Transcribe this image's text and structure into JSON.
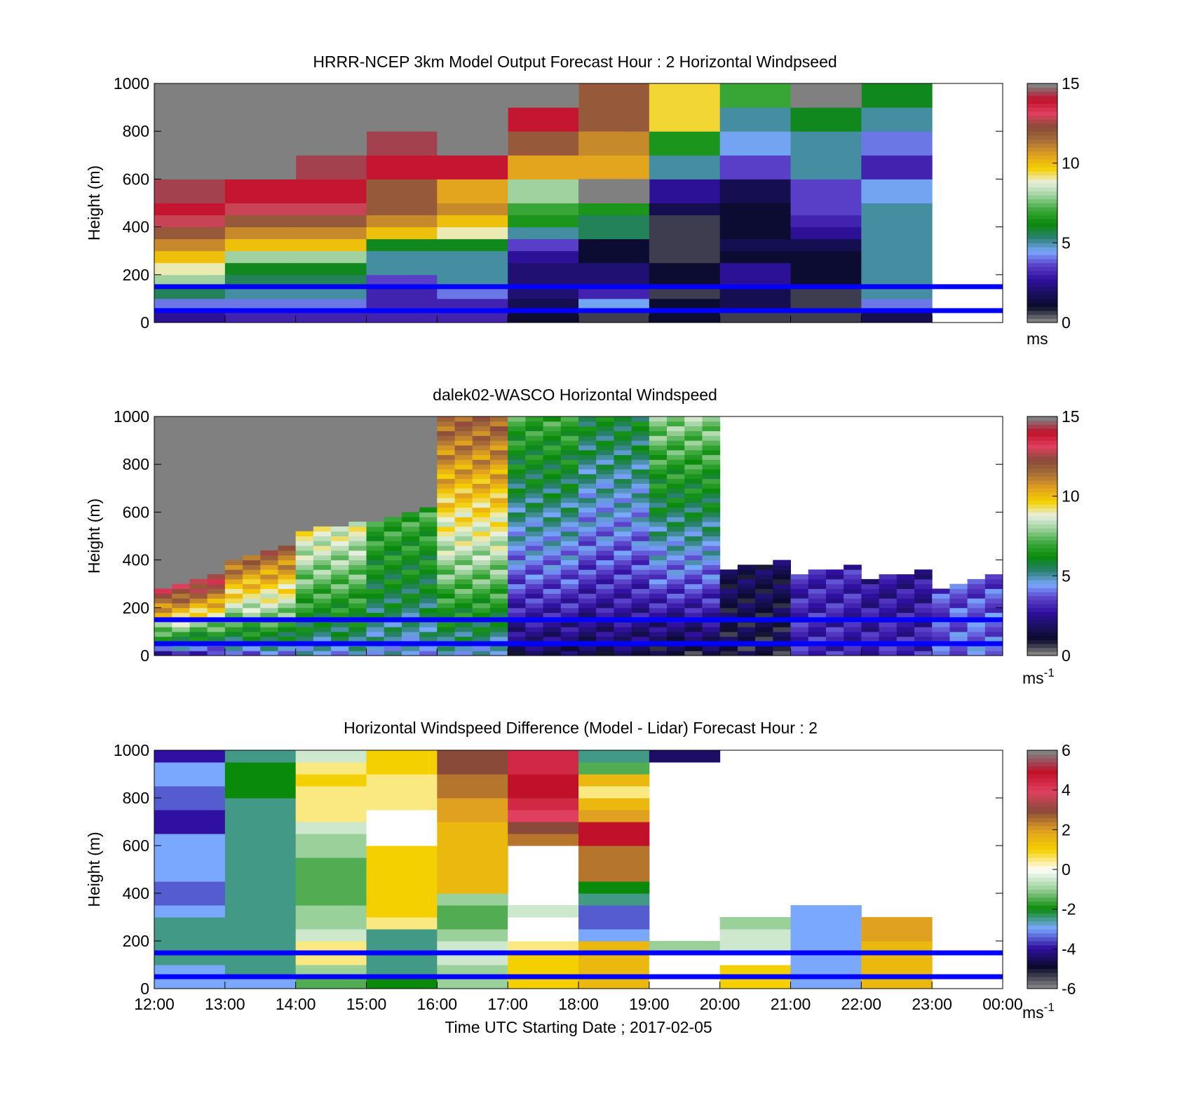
{
  "colormaps": {
    "speed": [
      "#808080",
      "#0a0a2a",
      "#1a1060",
      "#3010a0",
      "#5a40c8",
      "#7aa8ff",
      "#2a8070",
      "#0a8a0a",
      "#3aa83a",
      "#9ad09a",
      "#e8f0e0",
      "#f5d000",
      "#e0a020",
      "#a87038",
      "#8a4a3a",
      "#e04060",
      "#c0102a",
      "#808080"
    ],
    "diff": [
      "#808080",
      "#0a0a2a",
      "#3010a0",
      "#7aa8ff",
      "#0a8a0a",
      "#9ad09a",
      "#ffffff",
      "#f5d000",
      "#e0a020",
      "#8a4a3a",
      "#e04060",
      "#c0102a",
      "#808080"
    ]
  },
  "blue_line_color": "#0000ff",
  "x_ticks": [
    "12:00",
    "13:00",
    "14:00",
    "15:00",
    "16:00",
    "17:00",
    "18:00",
    "19:00",
    "20:00",
    "21:00",
    "22:00",
    "23:00",
    "00:00"
  ],
  "xlabel": "Time UTC  Starting Date ; 2017-02-05",
  "panels": [
    {
      "id": "model",
      "title": "HRRR-NCEP 3km Model Output   Forecast Hour : 2 Horizontal Windpseed",
      "ylabel": "Height (m)",
      "y_ticks": [
        "0",
        "200",
        "400",
        "600",
        "800",
        "1000"
      ],
      "cbar_ticks": [
        "0",
        "5",
        "10",
        "15"
      ],
      "cbar_unit": "ms",
      "cbar_unit_sup": ""
    },
    {
      "id": "lidar",
      "title": "dalek02-WASCO  Horizontal Windspeed",
      "ylabel": "Height (m)",
      "y_ticks": [
        "0",
        "200",
        "400",
        "600",
        "800",
        "1000"
      ],
      "cbar_ticks": [
        "0",
        "5",
        "10",
        "15"
      ],
      "cbar_unit": "ms",
      "cbar_unit_sup": "-1"
    },
    {
      "id": "diff",
      "title": "Horizontal Windspeed Difference (Model - Lidar) Forecast Hour : 2",
      "ylabel": "Height (m)",
      "y_ticks": [
        "0",
        "200",
        "400",
        "600",
        "800",
        "1000"
      ],
      "cbar_ticks": [
        "-6",
        "-4",
        "-2",
        "0",
        "2",
        "4",
        "6"
      ],
      "cbar_unit": "ms",
      "cbar_unit_sup": "-1"
    }
  ],
  "chart_data": [
    {
      "type": "heatmap",
      "title": "HRRR-NCEP 3km Model Output   Forecast Hour : 2 Horizontal Windpseed",
      "ylabel": "Height (m)",
      "xlim": [
        "12:00",
        "00:00"
      ],
      "ylim": [
        0,
        1000
      ],
      "clim": [
        0,
        15
      ],
      "colorbar_unit": "ms",
      "reference_lines_height_m": [
        50,
        150
      ],
      "x": [
        "12:00",
        "13:00",
        "14:00",
        "15:00",
        "16:00",
        "17:00",
        "18:00",
        "19:00",
        "20:00",
        "21:00",
        "22:00"
      ],
      "heights": [
        25,
        75,
        125,
        175,
        225,
        275,
        325,
        375,
        425,
        475,
        525,
        575,
        625,
        675,
        725,
        775,
        825,
        875,
        925,
        975
      ],
      "values": [
        [
          2.5,
          4.0,
          5.5,
          8.0,
          9.0,
          10.0,
          11.0,
          12.0,
          13.0,
          14.0,
          14.5,
          14.5,
          null,
          null,
          null,
          null,
          null,
          null,
          null,
          null
        ],
        [
          3.0,
          4.0,
          5.0,
          5.5,
          6.0,
          8.0,
          10.0,
          11.0,
          12.0,
          13.0,
          14.0,
          14.0,
          null,
          null,
          null,
          null,
          null,
          null,
          null,
          null
        ],
        [
          3.0,
          4.0,
          5.0,
          5.5,
          6.0,
          8.0,
          10.0,
          11.0,
          12.0,
          13.0,
          14.0,
          14.0,
          14.5,
          14.5,
          null,
          null,
          null,
          null,
          null,
          null
        ],
        [
          3.0,
          3.0,
          3.0,
          3.5,
          5.0,
          5.0,
          6.0,
          10.0,
          11.0,
          12.0,
          12.0,
          12.0,
          14.0,
          14.0,
          14.5,
          14.5,
          null,
          null,
          null,
          null
        ],
        [
          3.0,
          3.0,
          4.0,
          5.0,
          5.0,
          5.0,
          6.0,
          9.0,
          10.0,
          11.0,
          10.5,
          10.5,
          14.0,
          14.0,
          null,
          null,
          null,
          null,
          null,
          null
        ],
        [
          1.0,
          1.5,
          2.0,
          2.0,
          2.0,
          2.5,
          3.5,
          5.0,
          6.5,
          7.0,
          8.0,
          8.0,
          10.5,
          10.5,
          12.0,
          12.0,
          14.0,
          14.0,
          null,
          null
        ],
        [
          0.5,
          4.5,
          3.0,
          2.0,
          2.0,
          1.0,
          1.0,
          5.5,
          5.5,
          6.5,
          null,
          null,
          10.5,
          10.5,
          11.0,
          11.0,
          12.0,
          12.0,
          12.0,
          12.0
        ],
        [
          1.0,
          1.0,
          0.5,
          1.0,
          1.0,
          0.5,
          0.5,
          0.5,
          0.5,
          1.5,
          2.5,
          2.5,
          5.0,
          5.0,
          6.5,
          6.5,
          9.5,
          9.5,
          9.5,
          9.5
        ],
        [
          0.5,
          1.5,
          1.5,
          2.5,
          2.5,
          1.0,
          1.5,
          1.0,
          1.0,
          1.0,
          1.5,
          1.5,
          3.5,
          3.5,
          4.5,
          4.5,
          5.0,
          5.0,
          7.0,
          7.0
        ],
        [
          0.5,
          0.5,
          0.5,
          1.0,
          1.0,
          1.0,
          1.5,
          2.5,
          3.0,
          3.5,
          3.5,
          3.5,
          5.0,
          5.0,
          5.0,
          5.0,
          6.0,
          6.0,
          null,
          null
        ],
        [
          1.5,
          4.0,
          5.0,
          5.0,
          5.0,
          5.0,
          5.0,
          5.0,
          5.0,
          5.0,
          4.5,
          4.5,
          3.0,
          3.0,
          4.0,
          4.0,
          5.0,
          5.0,
          6.0,
          6.0
        ]
      ]
    },
    {
      "type": "heatmap",
      "title": "dalek02-WASCO  Horizontal Windspeed",
      "ylabel": "Height (m)",
      "xlim": [
        "12:00",
        "00:00"
      ],
      "ylim": [
        0,
        1000
      ],
      "clim": [
        0,
        15
      ],
      "colorbar_unit": "ms-1",
      "reference_lines_height_m": [
        50,
        150
      ],
      "x": [
        "12:00",
        "13:00",
        "14:00",
        "15:00",
        "16:00",
        "17:00",
        "18:00",
        "19:00",
        "20:00",
        "21:00",
        "22:00",
        "23:00"
      ],
      "data_top_m": [
        300,
        420,
        530,
        580,
        1000,
        1000,
        1000,
        1000,
        370,
        350,
        330,
        300
      ],
      "low_level_speed": [
        3.0,
        4.0,
        4.5,
        4.5,
        4.5,
        1.5,
        1.5,
        1.0,
        1.0,
        3.0,
        3.0,
        4.0
      ],
      "upper_speed": [
        13.5,
        12.0,
        9.0,
        7.0,
        12.0,
        7.0,
        6.0,
        8.0,
        1.5,
        3.0,
        2.5,
        3.5
      ]
    },
    {
      "type": "heatmap",
      "title": "Horizontal Windspeed Difference (Model - Lidar) Forecast Hour : 2",
      "ylabel": "Height (m)",
      "xlim": [
        "12:00",
        "00:00"
      ],
      "ylim": [
        0,
        1000
      ],
      "clim": [
        -6,
        6
      ],
      "colorbar_unit": "ms-1",
      "reference_lines_height_m": [
        50,
        150
      ],
      "x": [
        "12:00",
        "13:00",
        "14:00",
        "15:00",
        "16:00",
        "17:00",
        "18:00",
        "19:00",
        "20:00",
        "21:00",
        "22:00"
      ],
      "column_top_m": [
        1000,
        1000,
        1000,
        1000,
        1000,
        1000,
        1000,
        170,
        270,
        340,
        310
      ],
      "values": [
        [
          -3.0,
          -3.0,
          -2.5,
          -2.5,
          -2.5,
          -2.5,
          -3.0,
          -3.5,
          -3.5,
          -3.0,
          -3.0,
          -3.0,
          -3.0,
          -4.0,
          -4.0,
          -3.5,
          -3.5,
          -3.0,
          -3.0,
          -4.0
        ],
        [
          -3.0,
          -2.5,
          -2.5,
          -2.5,
          -2.5,
          -2.5,
          -2.5,
          -2.5,
          -2.5,
          -2.5,
          -2.5,
          -2.5,
          -2.5,
          -2.5,
          -2.5,
          -2.5,
          -2.0,
          -2.0,
          -2.0,
          -2.5
        ],
        [
          -1.5,
          -1.0,
          0.5,
          0.5,
          -0.5,
          -1.0,
          -1.0,
          -1.5,
          -1.5,
          -1.5,
          -1.5,
          -1.0,
          -1.0,
          -0.5,
          0.5,
          0.5,
          0.5,
          1.0,
          0.5,
          -0.5
        ],
        [
          -2.0,
          -2.5,
          -2.5,
          -2.5,
          -2.5,
          0.5,
          1.0,
          1.0,
          1.0,
          1.0,
          1.0,
          1.0,
          0.0,
          0.0,
          0.0,
          0.5,
          0.5,
          0.5,
          1.0,
          1.0
        ],
        [
          -1.0,
          -1.0,
          -0.5,
          -0.5,
          -1.0,
          -1.5,
          -1.5,
          -1.0,
          1.5,
          1.5,
          1.5,
          1.5,
          1.5,
          1.5,
          2.0,
          2.0,
          2.5,
          2.5,
          3.0,
          3.0
        ],
        [
          1.0,
          1.0,
          1.0,
          0.5,
          0.0,
          0.0,
          -0.5,
          null,
          null,
          null,
          null,
          null,
          2.5,
          3.0,
          4.0,
          4.5,
          5.0,
          5.0,
          4.5,
          4.5
        ],
        [
          1.5,
          1.5,
          1.5,
          1.5,
          -3.0,
          -3.5,
          -3.5,
          -2.5,
          -2.0,
          2.5,
          2.5,
          2.5,
          5.0,
          5.0,
          2.0,
          1.5,
          0.5,
          1.5,
          -1.5,
          -2.5
        ],
        [
          0.0,
          0.0,
          0.0,
          -1.0,
          null,
          null,
          null,
          null,
          null,
          null,
          null,
          null,
          null,
          null,
          null,
          null,
          null,
          null,
          null,
          -4.5
        ],
        [
          1.0,
          1.0,
          0.0,
          -0.5,
          -0.5,
          -1.0,
          null,
          null,
          null,
          null,
          null,
          null,
          null,
          null,
          null,
          null,
          null,
          null,
          null,
          null
        ],
        [
          -3.0,
          -3.0,
          -3.0,
          -3.0,
          -3.0,
          -3.0,
          -3.0,
          null,
          null,
          null,
          null,
          null,
          null,
          null,
          null,
          null,
          null,
          null,
          null,
          null
        ],
        [
          1.5,
          1.5,
          1.5,
          1.5,
          2.0,
          2.0,
          null,
          null,
          null,
          null,
          null,
          null,
          null,
          null,
          null,
          null,
          null,
          null,
          null,
          null
        ]
      ]
    }
  ]
}
